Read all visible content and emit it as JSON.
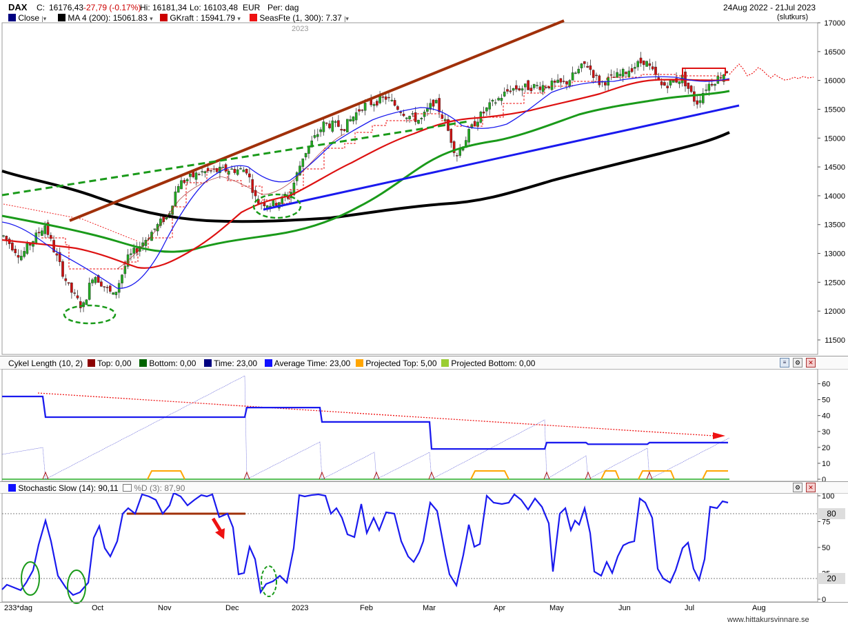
{
  "header": {
    "ticker": "DAX",
    "close_label": "C:",
    "close_value": "16176,43",
    "change": "-27,79 (-0.17%)",
    "hi": "Hi: 16181,34",
    "lo": "Lo: 16103,48",
    "currency": "EUR",
    "period": "Per: dag",
    "date_range": "24Aug 2022 - 21Jul 2023",
    "price_type": "(slutkurs)"
  },
  "legend_main": [
    {
      "label": "Close",
      "color": "#000080"
    },
    {
      "label": "MA 4 (200): 15061.83",
      "color": "#000000"
    },
    {
      "label": "GKraft : 15941.79",
      "color": "#cc0000"
    },
    {
      "label": "SeasFte (1, 300): 7.37",
      "color": "#ee1111"
    }
  ],
  "year_marker": "2023",
  "legend_cycle": [
    {
      "label": "Cykel Length (10, 2)",
      "color": null
    },
    {
      "label": "Top: 0,00",
      "color": "#8b0000"
    },
    {
      "label": "Bottom: 0,00",
      "color": "#006400"
    },
    {
      "label": "Time: 23,00",
      "color": "#000080"
    },
    {
      "label": "Average Time: 23,00",
      "color": "#1010ff"
    },
    {
      "label": "Projected Top: 5,00",
      "color": "#ffa500"
    },
    {
      "label": "Projected Bottom: 0,00",
      "color": "#9acd32"
    }
  ],
  "legend_stoch": [
    {
      "label": "Stochastic Slow (14): 90,11",
      "color": "#1010ff"
    },
    {
      "label": "%D (3): 87,90",
      "color": "#ffffff"
    }
  ],
  "stoch_levels": {
    "upper": "80",
    "lower": "20"
  },
  "x_axis": {
    "start_label": "233*dag",
    "months": [
      "Oct",
      "Nov",
      "Dec",
      "2023",
      "Feb",
      "Mar",
      "Apr",
      "May",
      "Jun",
      "Jul",
      "Aug"
    ]
  },
  "watermark": "www.hittakursvinnare.se",
  "colors": {
    "close": "#1010ff",
    "ma200": "#000000",
    "gkraft": "#dd1111",
    "ma_green": "#1a9a1a",
    "trend_brown": "#a0300a",
    "trend_blue": "#1a1aee",
    "trend_green_dashed": "#1a9a1a",
    "candle_up": "#22aa22",
    "candle_down": "#cc1111",
    "projected_top": "#ffa500"
  },
  "chart_data": [
    {
      "type": "candlestick",
      "title": "DAX",
      "x": [
        "2022-08-24",
        "2022-09-15",
        "2022-09-29",
        "2022-10-20",
        "2022-11-15",
        "2022-12-01",
        "2022-12-20",
        "2023-01-15",
        "2023-02-02",
        "2023-03-07",
        "2023-03-17",
        "2023-04-20",
        "2023-05-19",
        "2023-06-16",
        "2023-07-07",
        "2023-07-21"
      ],
      "close_approx": [
        13300,
        12900,
        12100,
        13000,
        14300,
        14500,
        13900,
        15100,
        15500,
        15650,
        14800,
        15800,
        16100,
        16350,
        15600,
        16176
      ],
      "ylim": [
        11000,
        17000
      ],
      "y_ticks": [
        11500,
        12000,
        12500,
        13000,
        13500,
        14000,
        14500,
        15000,
        15500,
        16000,
        16500,
        17000
      ],
      "series": [
        {
          "name": "Close",
          "last": 16176.43
        },
        {
          "name": "MA 4 (200)",
          "last": 15061.83
        },
        {
          "name": "GKraft",
          "last": 15941.79
        },
        {
          "name": "SeasFte (1, 300)",
          "last": 7.37
        }
      ]
    },
    {
      "type": "line",
      "title": "Cykel Length (10, 2)",
      "ylim": [
        0,
        65
      ],
      "y_ticks": [
        0,
        10,
        20,
        30,
        40,
        50,
        60
      ],
      "series": [
        {
          "name": "Time",
          "x": [
            "2022-08-24",
            "2022-09-08",
            "2022-09-09",
            "2022-12-13",
            "2022-12-14",
            "2023-01-19",
            "2023-01-20",
            "2023-03-08",
            "2023-03-09",
            "2023-05-05",
            "2023-05-06",
            "2023-05-26",
            "2023-05-27",
            "2023-06-23",
            "2023-06-24",
            "2023-07-21"
          ],
          "values": [
            52,
            52,
            39,
            39,
            45,
            45,
            36,
            36,
            19,
            19,
            23,
            23,
            22,
            22,
            23,
            23
          ]
        }
      ]
    },
    {
      "type": "line",
      "title": "Stochastic Slow (14)",
      "ylim": [
        0,
        100
      ],
      "y_ticks": [
        0,
        25,
        50,
        75,
        100
      ],
      "hlines": [
        80,
        20
      ],
      "series": [
        {
          "name": "Stochastic Slow (14)",
          "x": [
            "2022-08-24",
            "2022-09-06",
            "2022-09-14",
            "2022-09-29",
            "2022-10-17",
            "2022-11-04",
            "2022-11-15",
            "2022-12-06",
            "2022-12-15",
            "2023-01-09",
            "2023-01-23",
            "2023-02-23",
            "2023-03-15",
            "2023-04-04",
            "2023-04-28",
            "2023-05-16",
            "2023-06-01",
            "2023-06-09",
            "2023-06-27",
            "2023-07-10",
            "2023-07-21"
          ],
          "values": [
            12,
            72,
            20,
            8,
            55,
            100,
            92,
            25,
            10,
            100,
            78,
            35,
            15,
            90,
            82,
            88,
            22,
            100,
            18,
            85,
            90
          ]
        }
      ]
    }
  ]
}
